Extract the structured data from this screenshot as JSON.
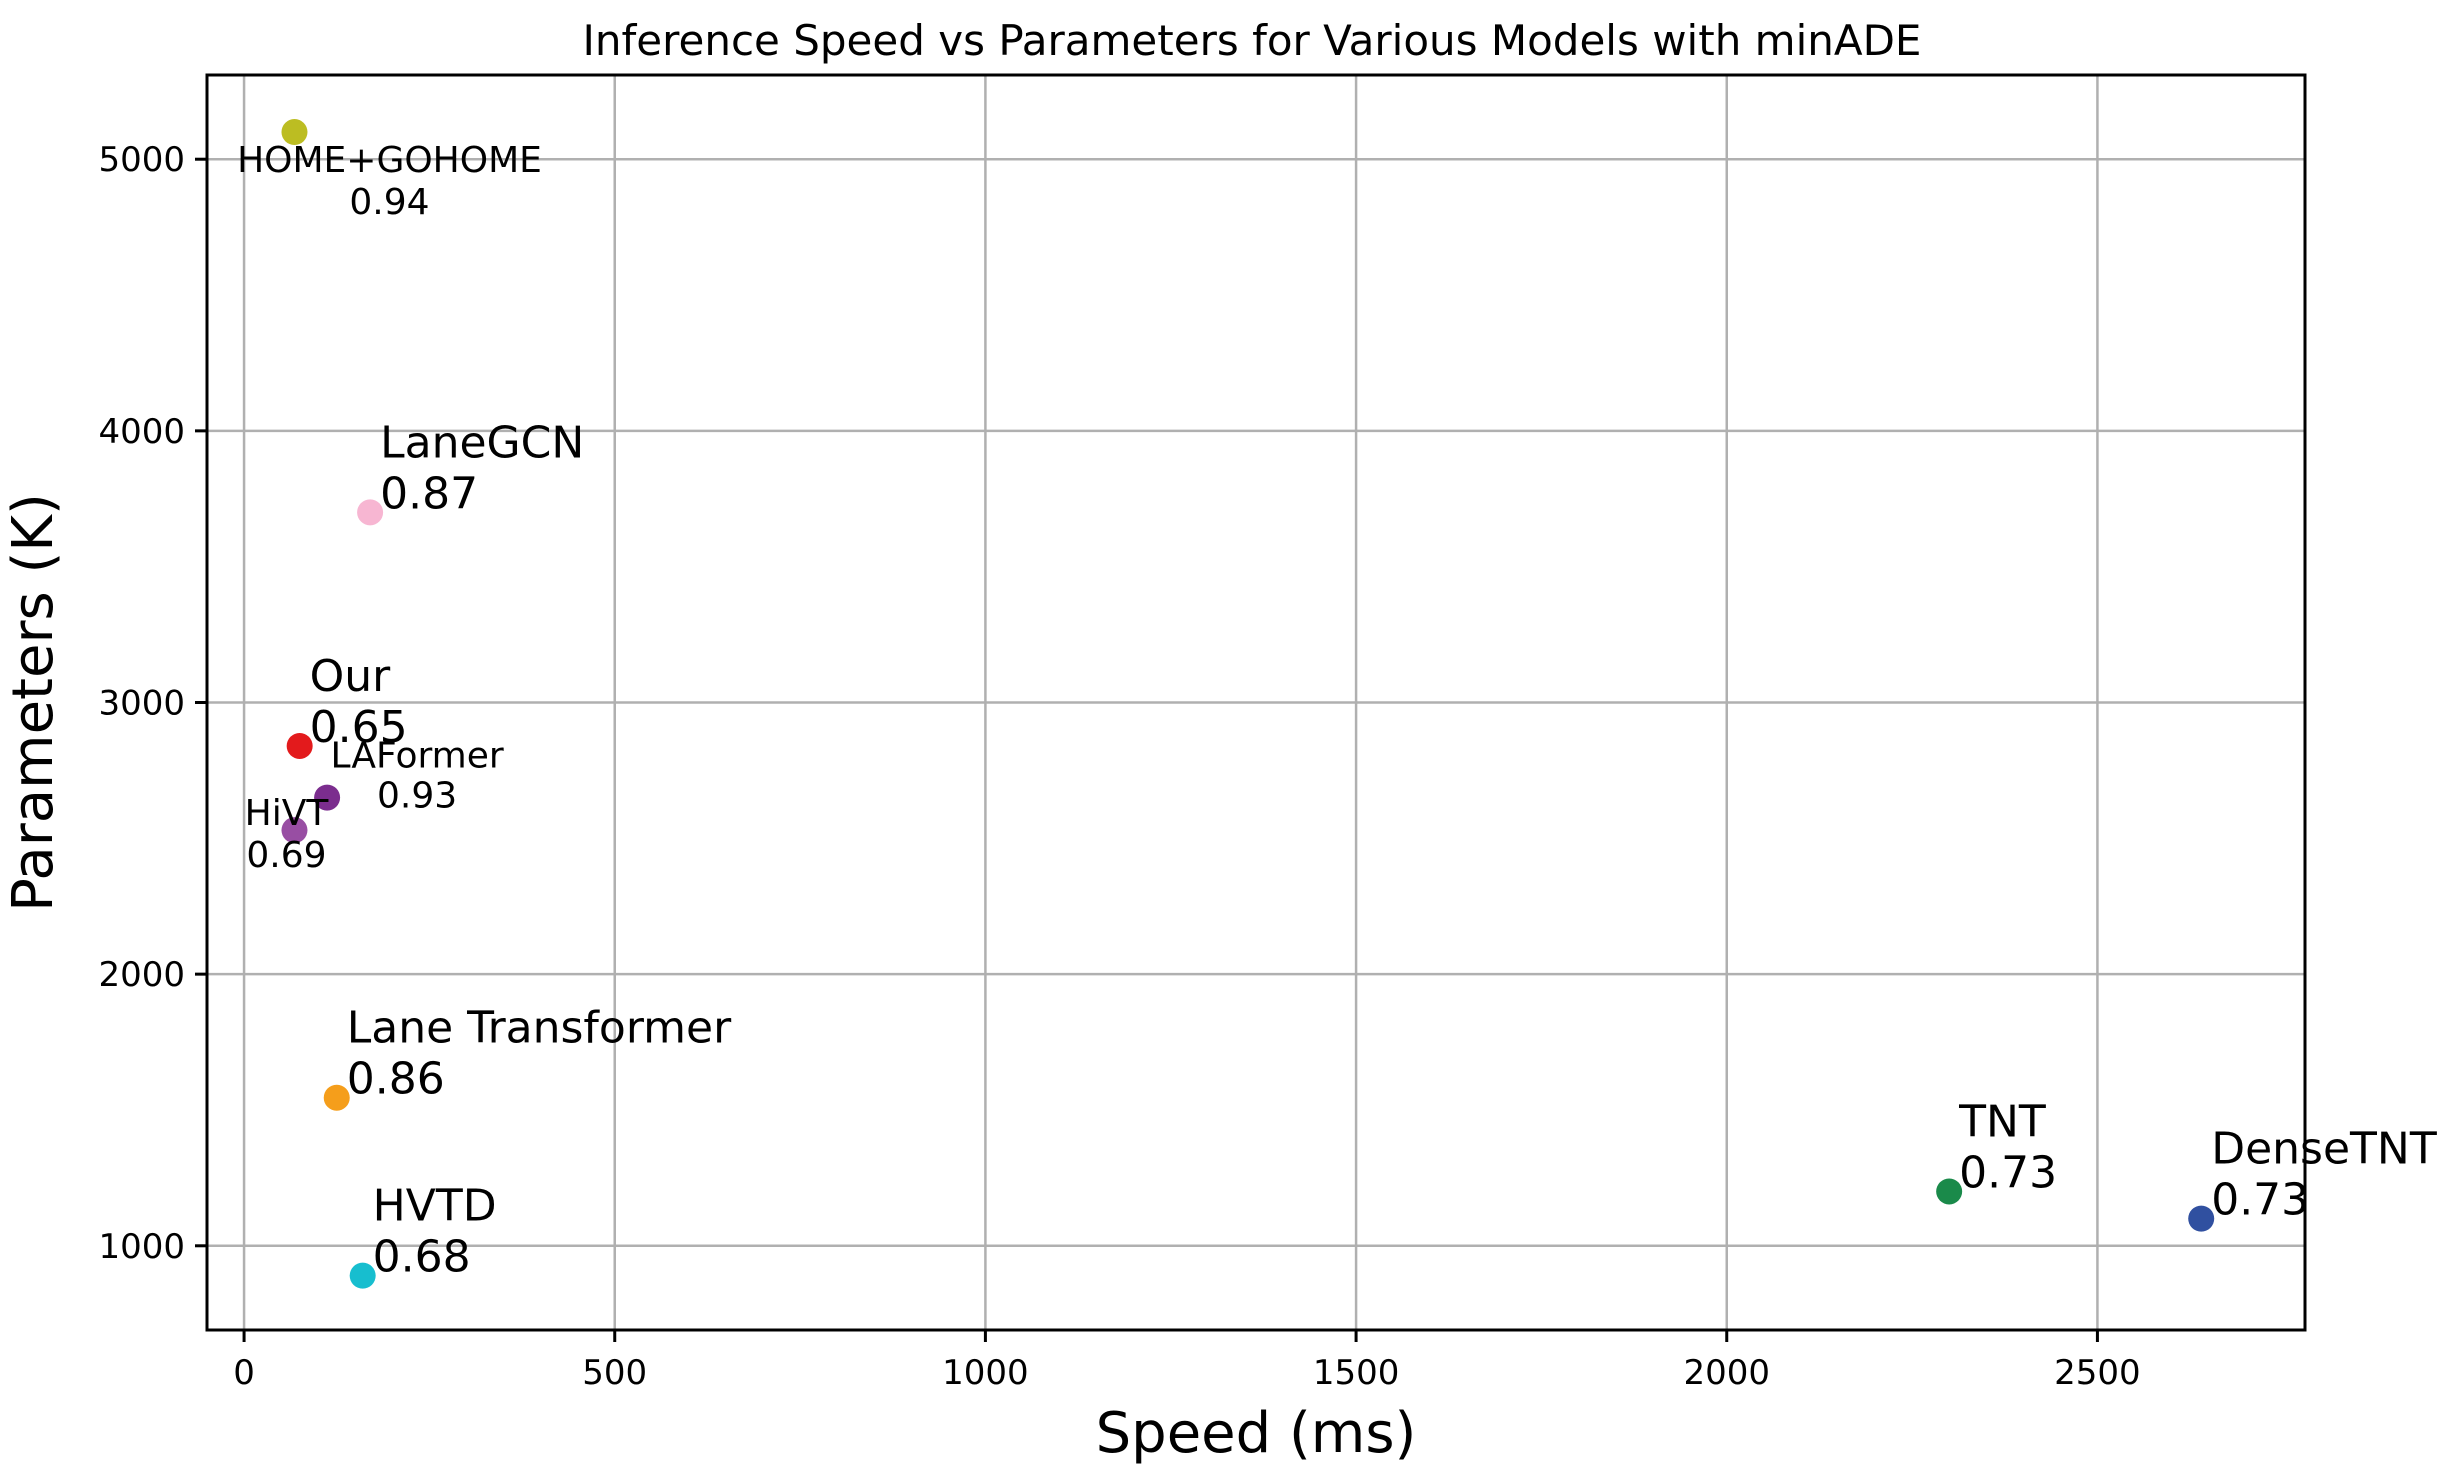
{
  "chart_data": {
    "type": "scatter",
    "title": "Inference Speed vs Parameters for Various Models with minADE",
    "xlabel": "Speed (ms)",
    "ylabel": "Parameters (K)",
    "xlim": [
      -50,
      2780
    ],
    "ylim": [
      690,
      5310
    ],
    "xticks": [
      0,
      500,
      1000,
      1500,
      2000,
      2500
    ],
    "yticks": [
      1000,
      2000,
      3000,
      4000,
      5000
    ],
    "grid": true,
    "points": [
      {
        "name": "HOME+GOHOME",
        "minADE": "0.94",
        "x": 68,
        "y": 5100,
        "color": "#bcbd22",
        "label_size": "small",
        "label_align": "center"
      },
      {
        "name": "LaneGCN",
        "minADE": "0.87",
        "x": 170,
        "y": 3700,
        "color": "#f7b6d2",
        "label_size": "big",
        "label_align": "left"
      },
      {
        "name": "Our",
        "minADE": "0.65",
        "x": 75,
        "y": 2840,
        "color": "#e31a1c",
        "label_size": "big",
        "label_align": "left"
      },
      {
        "name": "LAFormer",
        "minADE": "0.93",
        "x": 112,
        "y": 2650,
        "color": "#7b2d8e",
        "label_size": "small",
        "label_align": "center"
      },
      {
        "name": "HiVT",
        "minADE": "0.69",
        "x": 68,
        "y": 2530,
        "color": "#984ea3",
        "label_size": "small",
        "label_align": "center"
      },
      {
        "name": "Lane Transformer",
        "minADE": "0.86",
        "x": 125,
        "y": 1545,
        "color": "#f59e1b",
        "label_size": "big",
        "label_align": "left"
      },
      {
        "name": "HVTD",
        "minADE": "0.68",
        "x": 160,
        "y": 890,
        "color": "#17becf",
        "label_size": "big",
        "label_align": "left"
      },
      {
        "name": "TNT",
        "minADE": "0.73",
        "x": 2300,
        "y": 1200,
        "color": "#1a8a4a",
        "label_size": "big",
        "label_align": "left"
      },
      {
        "name": "DenseTNT",
        "minADE": "0.73",
        "x": 2640,
        "y": 1100,
        "color": "#3050a0",
        "label_size": "big",
        "label_align": "left"
      }
    ]
  }
}
